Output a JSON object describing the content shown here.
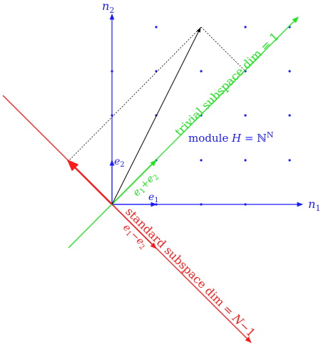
{
  "colors": {
    "axes": "#1a1aff",
    "standard": "#ff1a1a",
    "trivial": "#1ae61a",
    "vectors": "#000000"
  },
  "axes": {
    "n1_base": "n",
    "n1_sub": "1",
    "n2_base": "n",
    "n2_sub": "2"
  },
  "basis": {
    "e1_base": "e",
    "e1_sub": "1",
    "e2_base": "e",
    "e2_sub": "2"
  },
  "module_label": {
    "prefix": "module ",
    "symbol": "H",
    "equals": " = ",
    "set": "ℕ",
    "superscript": "N"
  },
  "trivial": {
    "label": "trivial subspace dim = 1",
    "vector_e1": "e",
    "vector_sub1": "1",
    "plus": "+",
    "vector_e2": "e",
    "vector_sub2": "2"
  },
  "standard": {
    "label_text": "standard subspace dim = ",
    "label_N": "N",
    "label_minus": "−1",
    "vector_e1": "e",
    "vector_sub1": "1",
    "minus": "−",
    "vector_e2": "e",
    "vector_sub2": "2"
  }
}
